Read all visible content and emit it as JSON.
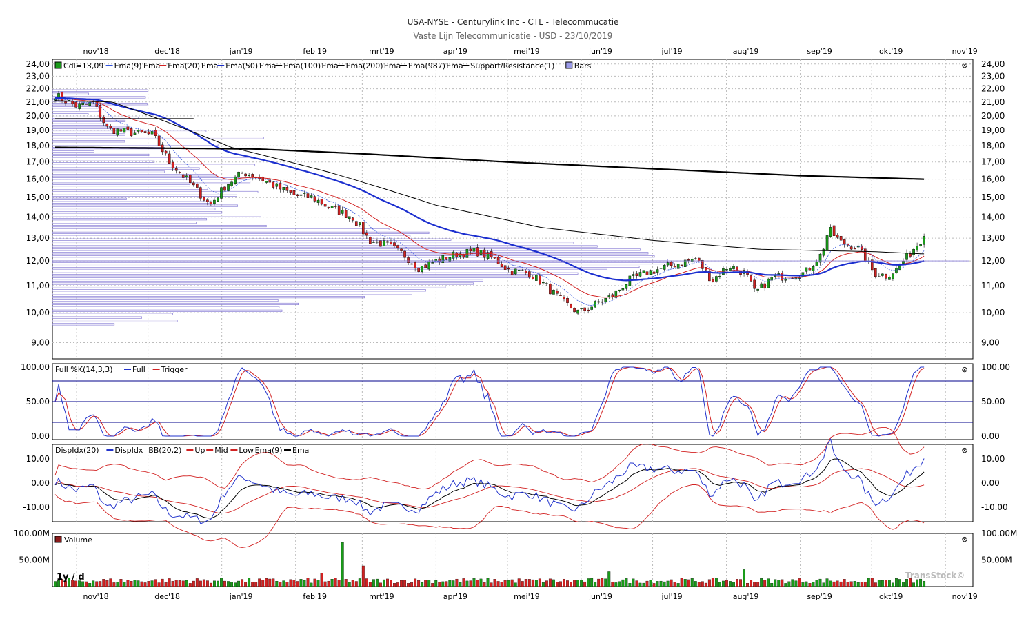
{
  "header": {
    "title": "USA-NYSE - Centurylink Inc - CTL - Telecommucatie",
    "subtitle": "Vaste Lijn Telecommunicatie - USD - 23/10/2019"
  },
  "months": [
    "nov'18",
    "dec'18",
    "jan'19",
    "feb'19",
    "mrt'19",
    "apr'19",
    "mei'19",
    "jun'19",
    "jul'19",
    "aug'19",
    "sep'19",
    "okt'19",
    "nov'19"
  ],
  "period_label": "1y / d",
  "brand": "TransStock©",
  "close_label": "⊗",
  "colors": {
    "up": "#1a9b1a",
    "down": "#d22222",
    "ema9": "#3355dd",
    "ema20": "#d22222",
    "ema50": "#1c2fcf",
    "ema100": "#000000",
    "ema200": "#000000",
    "bars": "#8a7fd6"
  },
  "chart_data": [
    {
      "panel": "price",
      "type": "candlestick",
      "legend": [
        "Cdl=13,09",
        "Ema(9)",
        "Ema",
        "Ema(20)",
        "Ema",
        "Ema(50)",
        "Ema",
        "Ema(100)",
        "Ema",
        "Ema(200)",
        "Ema",
        "Ema(987)",
        "Ema",
        "Support/Resistance(1)",
        "Bars"
      ],
      "y_ticks": [
        "24,00",
        "23,00",
        "22,00",
        "21,00",
        "20,00",
        "19,00",
        "18,00",
        "17,00",
        "16,00",
        "15,00",
        "14,00",
        "13,00",
        "12,00",
        "11,00",
        "10,00",
        "9,00"
      ],
      "y_tick_values": [
        24,
        23,
        22,
        21,
        20,
        19,
        18,
        17,
        16,
        15,
        14,
        13,
        12,
        11,
        10,
        9
      ],
      "y_scale": "log",
      "ylim": [
        8.5,
        24.4
      ],
      "last_close": 13.09,
      "close_anchors": [
        {
          "d": "2018-10-23",
          "v": 21.5
        },
        {
          "d": "2018-11-01",
          "v": 20.7
        },
        {
          "d": "2018-11-08",
          "v": 20.9
        },
        {
          "d": "2018-11-14",
          "v": 19.1
        },
        {
          "d": "2018-11-26",
          "v": 18.8
        },
        {
          "d": "2018-12-03",
          "v": 18.7
        },
        {
          "d": "2018-12-10",
          "v": 17.0
        },
        {
          "d": "2018-12-20",
          "v": 15.6
        },
        {
          "d": "2018-12-27",
          "v": 14.6
        },
        {
          "d": "2019-01-03",
          "v": 15.7
        },
        {
          "d": "2019-01-10",
          "v": 16.4
        },
        {
          "d": "2019-01-18",
          "v": 16.0
        },
        {
          "d": "2019-01-25",
          "v": 15.5
        },
        {
          "d": "2019-02-01",
          "v": 15.1
        },
        {
          "d": "2019-02-08",
          "v": 15.0
        },
        {
          "d": "2019-02-15",
          "v": 14.5
        },
        {
          "d": "2019-02-25",
          "v": 14.0
        },
        {
          "d": "2019-03-04",
          "v": 12.9
        },
        {
          "d": "2019-03-11",
          "v": 12.7
        },
        {
          "d": "2019-03-18",
          "v": 12.3
        },
        {
          "d": "2019-03-25",
          "v": 11.7
        },
        {
          "d": "2019-04-01",
          "v": 12.0
        },
        {
          "d": "2019-04-10",
          "v": 12.3
        },
        {
          "d": "2019-04-18",
          "v": 12.4
        },
        {
          "d": "2019-04-25",
          "v": 12.1
        },
        {
          "d": "2019-05-02",
          "v": 11.6
        },
        {
          "d": "2019-05-10",
          "v": 11.5
        },
        {
          "d": "2019-05-17",
          "v": 11.0
        },
        {
          "d": "2019-05-24",
          "v": 10.4
        },
        {
          "d": "2019-05-31",
          "v": 10.0
        },
        {
          "d": "2019-06-07",
          "v": 10.3
        },
        {
          "d": "2019-06-14",
          "v": 10.6
        },
        {
          "d": "2019-06-21",
          "v": 11.2
        },
        {
          "d": "2019-06-28",
          "v": 11.5
        },
        {
          "d": "2019-07-05",
          "v": 11.7
        },
        {
          "d": "2019-07-12",
          "v": 11.9
        },
        {
          "d": "2019-07-19",
          "v": 12.1
        },
        {
          "d": "2019-07-26",
          "v": 11.2
        },
        {
          "d": "2019-08-02",
          "v": 11.8
        },
        {
          "d": "2019-08-09",
          "v": 11.5
        },
        {
          "d": "2019-08-13",
          "v": 10.7
        },
        {
          "d": "2019-08-20",
          "v": 11.3
        },
        {
          "d": "2019-08-27",
          "v": 11.4
        },
        {
          "d": "2019-09-03",
          "v": 11.5
        },
        {
          "d": "2019-09-10",
          "v": 12.3
        },
        {
          "d": "2019-09-13",
          "v": 13.4
        },
        {
          "d": "2019-09-18",
          "v": 12.8
        },
        {
          "d": "2019-09-25",
          "v": 12.6
        },
        {
          "d": "2019-10-02",
          "v": 11.5
        },
        {
          "d": "2019-10-07",
          "v": 11.4
        },
        {
          "d": "2019-10-11",
          "v": 11.6
        },
        {
          "d": "2019-10-16",
          "v": 12.2
        },
        {
          "d": "2019-10-23",
          "v": 13.09
        }
      ],
      "ema200_anchors": [
        {
          "d": "2018-10-23",
          "v": 21.1
        },
        {
          "d": "2018-11-16",
          "v": 21.0
        },
        {
          "d": "2018-12-10",
          "v": 19.5
        },
        {
          "d": "2019-01-05",
          "v": 17.9
        },
        {
          "d": "2019-02-15",
          "v": 16.4
        },
        {
          "d": "2019-04-01",
          "v": 14.6
        },
        {
          "d": "2019-05-15",
          "v": 13.5
        },
        {
          "d": "2019-07-01",
          "v": 12.9
        },
        {
          "d": "2019-08-15",
          "v": 12.5
        },
        {
          "d": "2019-10-01",
          "v": 12.4
        },
        {
          "d": "2019-10-23",
          "v": 12.3
        }
      ],
      "ema987_anchors": [
        {
          "d": "2018-10-23",
          "v": 17.9
        },
        {
          "d": "2019-01-15",
          "v": 17.8
        },
        {
          "d": "2019-03-01",
          "v": 17.5
        },
        {
          "d": "2019-05-01",
          "v": 17.0
        },
        {
          "d": "2019-07-01",
          "v": 16.6
        },
        {
          "d": "2019-09-01",
          "v": 16.2
        },
        {
          "d": "2019-10-23",
          "v": 16.0
        }
      ],
      "volume_profile": "horizontal volume-at-price bars on the left"
    },
    {
      "panel": "stochastic",
      "type": "line",
      "legend": [
        "Full %K(14,3,3)",
        "Full",
        "Trigger"
      ],
      "y_ticks": [
        "100.00",
        "50.00",
        "0.00"
      ],
      "y_tick_values": [
        100,
        50,
        0
      ],
      "levels": [
        80,
        50,
        20
      ],
      "ylim": [
        -5,
        105
      ]
    },
    {
      "panel": "dispidx",
      "type": "line",
      "legend": [
        "DispIdx(20)",
        "DispIdx",
        "BB(20,2)",
        "Up",
        "Mid",
        "Low",
        "Ema(9)",
        "Ema"
      ],
      "y_ticks": [
        "10.00",
        "0.00",
        "-10.00"
      ],
      "y_tick_values": [
        10,
        0,
        -10
      ],
      "ylim": [
        -16,
        16
      ]
    },
    {
      "panel": "volume",
      "type": "bar",
      "legend": [
        "Volume"
      ],
      "y_ticks": [
        "100.00M",
        "50.00M"
      ],
      "y_tick_values": [
        100,
        50
      ],
      "ylim": [
        0,
        100
      ],
      "spikes": [
        {
          "d": "2019-02-21",
          "v": 83
        },
        {
          "d": "2019-03-01",
          "v": 39
        },
        {
          "d": "2019-08-08",
          "v": 32
        },
        {
          "d": "2019-06-13",
          "v": 28
        },
        {
          "d": "2019-02-12",
          "v": 25
        }
      ]
    }
  ]
}
